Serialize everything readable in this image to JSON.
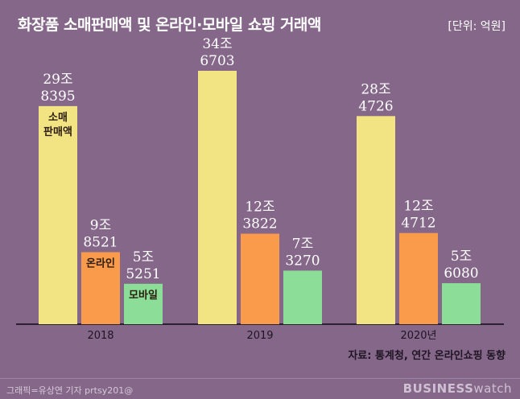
{
  "title": "화장품 소매판매액 및 온라인·모바일 쇼핑 거래액",
  "unit": "[단위: 억원]",
  "source": "자료: 통계청, 연간 온라인쇼핑 동향",
  "credit": "그래픽=유상연 기자 prtsy201@",
  "brand": {
    "bold": "BUSINESS",
    "light": "watch"
  },
  "colors": {
    "background": "#856889",
    "retail": "#f3e483",
    "online": "#fa9a4b",
    "mobile": "#8bdd98",
    "value_text": "#ffffff",
    "axis": "#2b1f30"
  },
  "chart_data": {
    "type": "bar",
    "categories": [
      "2018",
      "2019",
      "2020년"
    ],
    "ylim": [
      0,
      350000
    ],
    "series": [
      {
        "name": "소매\n판매액",
        "key": "retail",
        "values": [
          298395,
          346703,
          284726
        ],
        "labels": [
          [
            "29조",
            "8395"
          ],
          [
            "34조",
            "6703"
          ],
          [
            "28조",
            "4726"
          ]
        ]
      },
      {
        "name": "온라인",
        "key": "online",
        "values": [
          98521,
          123822,
          124712
        ],
        "labels": [
          [
            "9조",
            "8521"
          ],
          [
            "12조",
            "3822"
          ],
          [
            "12조",
            "4712"
          ]
        ]
      },
      {
        "name": "모바일",
        "key": "mobile",
        "values": [
          55251,
          73270,
          56080
        ],
        "labels": [
          [
            "5조",
            "5251"
          ],
          [
            "7조",
            "3270"
          ],
          [
            "5조",
            "6080"
          ]
        ]
      }
    ]
  }
}
